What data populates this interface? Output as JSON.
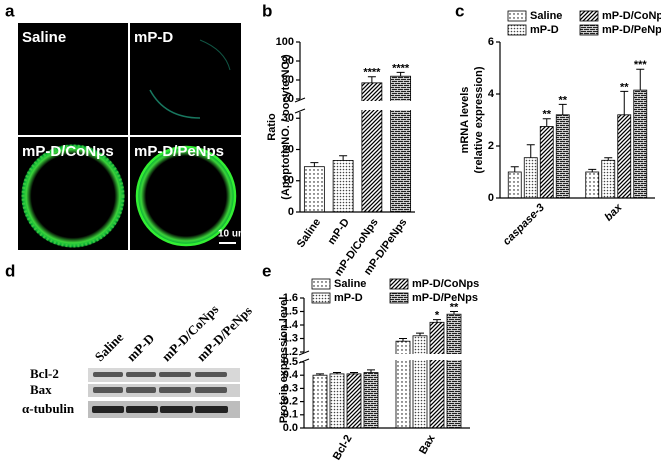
{
  "panel_a": {
    "label": "a",
    "images": [
      "Saline",
      "mP-D",
      "mP-D/CoNps",
      "mP-D/PeNps"
    ],
    "scale_bar": "10 um"
  },
  "panel_d": {
    "label": "d",
    "lanes": [
      "Saline",
      "mP-D",
      "mP-D/CoNps",
      "mP-D/PeNps"
    ],
    "rows": [
      "Bcl-2",
      "Bax",
      "α-tubulin"
    ]
  },
  "chart_data": [
    {
      "type": "bar",
      "label": "b",
      "y_label": [
        "Ratio",
        "(ApoptoticNO. / oocyte NO.)"
      ],
      "categories": [
        "Saline",
        "mP-D",
        "mP-D/CoNps",
        "mP-D/PeNps"
      ],
      "values": [
        14.5,
        16.5,
        78.5,
        82
      ],
      "errors": [
        1.3,
        1.5,
        3.2,
        2.0
      ],
      "annotations": [
        null,
        null,
        "****",
        "****"
      ],
      "patterns": [
        "dots",
        "dots-dense",
        "hatch",
        "brick"
      ],
      "ylim_segments": [
        [
          0,
          32
        ],
        [
          70,
          100
        ]
      ],
      "yticks": [
        0,
        10,
        20,
        30,
        70,
        80,
        90,
        100
      ]
    },
    {
      "type": "grouped_bar",
      "label": "c",
      "y_label": [
        "mRNA levels",
        "(relative expression)"
      ],
      "categories": [
        "caspase-3",
        "bax"
      ],
      "series": [
        {
          "name": "Saline",
          "pattern": "dots",
          "values": [
            1.0,
            1.0
          ],
          "errors": [
            0.2,
            0.1
          ],
          "annotations": [
            null,
            null
          ]
        },
        {
          "name": "mP-D",
          "pattern": "dots-dense",
          "values": [
            1.55,
            1.45
          ],
          "errors": [
            0.5,
            0.1
          ],
          "annotations": [
            null,
            null
          ]
        },
        {
          "name": "mP-D/CoNps",
          "pattern": "hatch",
          "values": [
            2.75,
            3.2
          ],
          "errors": [
            0.3,
            0.9
          ],
          "annotations": [
            "**",
            "**"
          ]
        },
        {
          "name": "mP-D/PeNps",
          "pattern": "brick",
          "values": [
            3.2,
            4.15
          ],
          "errors": [
            0.4,
            0.8
          ],
          "annotations": [
            "**",
            "***"
          ]
        }
      ],
      "ylim": [
        0,
        6
      ],
      "yticks": [
        0,
        2,
        4,
        6
      ]
    },
    {
      "type": "grouped_bar",
      "label": "e",
      "y_label": [
        "Protein expression level"
      ],
      "categories": [
        "Bcl-2",
        "Bax"
      ],
      "series": [
        {
          "name": "Saline",
          "pattern": "dots",
          "values": [
            0.4,
            1.28
          ],
          "errors": [
            0.01,
            0.02
          ],
          "annotations": [
            null,
            null
          ]
        },
        {
          "name": "mP-D",
          "pattern": "dots-dense",
          "values": [
            0.41,
            1.32
          ],
          "errors": [
            0.01,
            0.02
          ],
          "annotations": [
            null,
            null
          ]
        },
        {
          "name": "mP-D/CoNps",
          "pattern": "hatch",
          "values": [
            0.41,
            1.42
          ],
          "errors": [
            0.01,
            0.02
          ],
          "annotations": [
            null,
            "*"
          ]
        },
        {
          "name": "mP-D/PeNps",
          "pattern": "brick",
          "values": [
            0.42,
            1.48
          ],
          "errors": [
            0.02,
            0.02
          ],
          "annotations": [
            null,
            "**"
          ]
        }
      ],
      "ylim_segments": [
        [
          0,
          0.5
        ],
        [
          1.2,
          1.6
        ]
      ],
      "yticks": [
        {
          "value": 0,
          "label": "0.0"
        },
        0.1,
        0.2,
        0.3,
        0.4,
        0.5,
        1.2,
        1.3,
        1.4,
        1.5,
        1.6
      ]
    }
  ]
}
